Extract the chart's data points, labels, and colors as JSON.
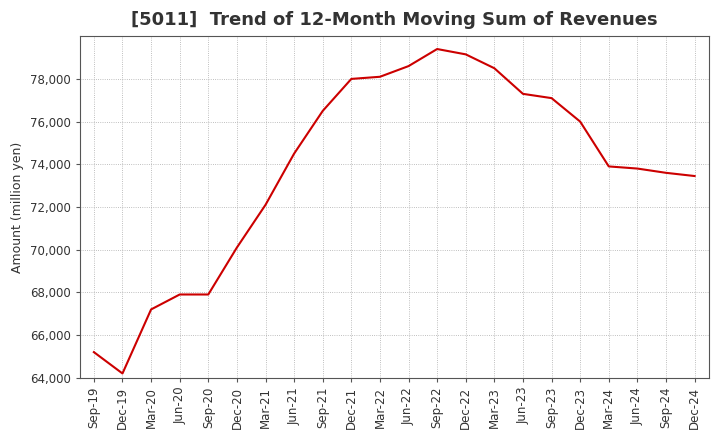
{
  "title": "[5011]  Trend of 12-Month Moving Sum of Revenues",
  "ylabel": "Amount (million yen)",
  "background_color": "#ffffff",
  "grid_color": "#aaaaaa",
  "line_color": "#cc0000",
  "x_labels": [
    "Sep-19",
    "Dec-19",
    "Mar-20",
    "Jun-20",
    "Sep-20",
    "Dec-20",
    "Mar-21",
    "Jun-21",
    "Sep-21",
    "Dec-21",
    "Mar-22",
    "Jun-22",
    "Sep-22",
    "Dec-22",
    "Mar-23",
    "Jun-23",
    "Sep-23",
    "Dec-23",
    "Mar-24",
    "Jun-24",
    "Sep-24",
    "Dec-24"
  ],
  "y_values": [
    65200,
    64200,
    67200,
    67900,
    67900,
    70100,
    72100,
    74500,
    76500,
    78000,
    78100,
    78600,
    79400,
    79150,
    78500,
    77300,
    77100,
    76000,
    73900,
    73800,
    73600,
    73450
  ],
  "ylim": [
    64000,
    80000
  ],
  "yticks": [
    64000,
    66000,
    68000,
    70000,
    72000,
    74000,
    76000,
    78000
  ],
  "title_fontsize": 13,
  "axis_fontsize": 9,
  "tick_fontsize": 8.5
}
